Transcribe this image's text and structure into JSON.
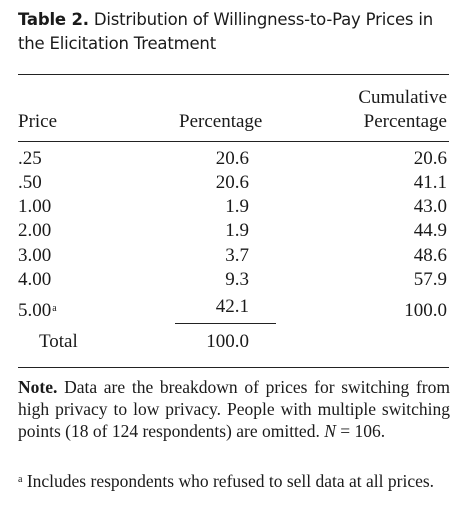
{
  "title": {
    "label": "Table 2.",
    "text": "Distribution of Willingness-to-Pay Prices in the Elicitation Treatment"
  },
  "headers": {
    "price": "Price",
    "percentage": "Percentage",
    "cumulative_line1": "Cumulative",
    "cumulative_line2": "Percentage"
  },
  "rows": [
    {
      "price": ".25",
      "percentage": "20.6",
      "cumulative": "20.6",
      "footnote": ""
    },
    {
      "price": ".50",
      "percentage": "20.6",
      "cumulative": "41.1",
      "footnote": ""
    },
    {
      "price": "1.00",
      "percentage": "1.9",
      "cumulative": "43.0",
      "footnote": ""
    },
    {
      "price": "2.00",
      "percentage": "1.9",
      "cumulative": "44.9",
      "footnote": ""
    },
    {
      "price": "3.00",
      "percentage": "3.7",
      "cumulative": "48.6",
      "footnote": ""
    },
    {
      "price": "4.00",
      "percentage": "9.3",
      "cumulative": "57.9",
      "footnote": ""
    },
    {
      "price": "5.00",
      "percentage": "42.1",
      "cumulative": "100.0",
      "footnote": "a"
    }
  ],
  "total": {
    "label": "Total",
    "percentage": "100.0"
  },
  "note": {
    "label": "Note.",
    "text_before_n": "Data are the breakdown of prices for switching from high privacy to low privacy. People with multiple switching points (18 of 124 respondents) are omitted.",
    "n_symbol": "N",
    "n_value": "= 106."
  },
  "footnote": {
    "marker": "a",
    "text": "Includes respondents who refused to sell data at all prices."
  }
}
